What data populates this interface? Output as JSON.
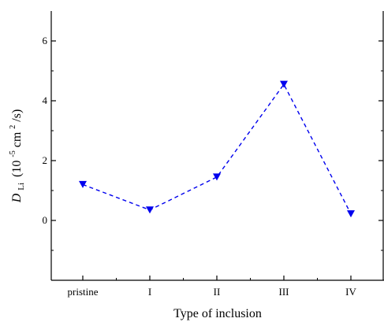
{
  "chart_data": {
    "type": "line",
    "categories": [
      "pristine",
      "I",
      "II",
      "III",
      "IV"
    ],
    "series": [
      {
        "values": [
          1.2,
          0.35,
          1.45,
          4.55,
          0.22
        ],
        "color": "#0000ee",
        "marker": "triangle-down",
        "line_style": "dashed"
      }
    ],
    "xlabel": "Type of inclusion",
    "ylabel": {
      "symbol": "D",
      "subscript": "Li",
      "prefix": "(10",
      "exponent": "-5",
      "unit": " cm",
      "unit_exponent": "2",
      "suffix": "/s)"
    },
    "ylim": [
      -2,
      7
    ],
    "yticks": [
      0,
      2,
      4,
      6
    ],
    "y_minor_ticks": [
      -1,
      1,
      3,
      5
    ],
    "y_tick_labels": [
      "0",
      "2",
      "4",
      "6"
    ],
    "grid": false,
    "legend": "none"
  }
}
